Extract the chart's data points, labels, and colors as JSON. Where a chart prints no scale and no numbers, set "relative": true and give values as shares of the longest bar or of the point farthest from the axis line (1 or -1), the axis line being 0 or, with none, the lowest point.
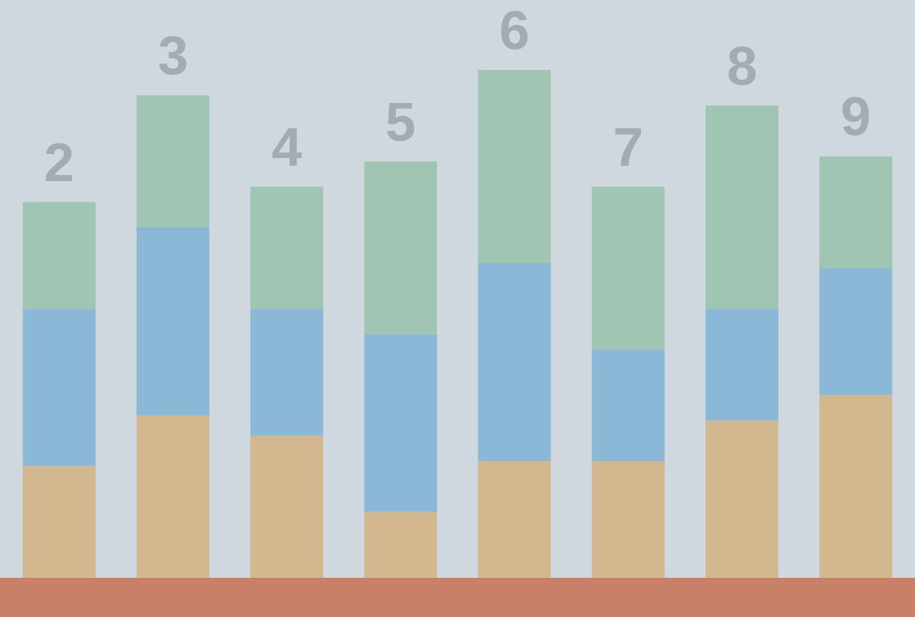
{
  "chart_data": {
    "type": "bar",
    "stacked": true,
    "relative": true,
    "legend": false,
    "categories": [
      "2",
      "3",
      "4",
      "5",
      "6",
      "7",
      "8",
      "9"
    ],
    "series": [
      {
        "color": "#d3b78e",
        "values": [
          0.22,
          0.32,
          0.28,
          0.13,
          0.23,
          0.23,
          0.31,
          0.36
        ]
      },
      {
        "color": "#8ab8d6",
        "values": [
          0.31,
          0.37,
          0.25,
          0.35,
          0.39,
          0.22,
          0.22,
          0.25
        ]
      },
      {
        "color": "#a0c5b3",
        "values": [
          0.21,
          0.26,
          0.24,
          0.34,
          0.38,
          0.32,
          0.4,
          0.22
        ]
      }
    ]
  }
}
